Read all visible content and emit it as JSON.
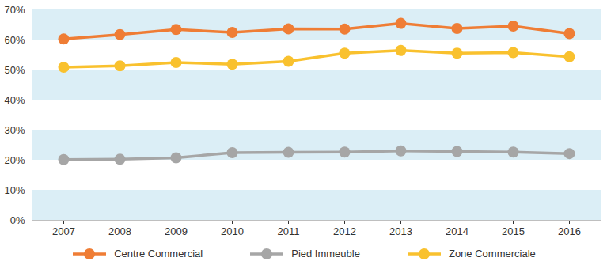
{
  "chart_data": {
    "type": "line",
    "categories": [
      "2007",
      "2008",
      "2009",
      "2010",
      "2011",
      "2012",
      "2013",
      "2014",
      "2015",
      "2016"
    ],
    "series": [
      {
        "name": "Centre Commercial",
        "color": "#ef7d35",
        "values": [
          60.3,
          61.8,
          63.5,
          62.5,
          63.7,
          63.6,
          65.5,
          63.8,
          64.6,
          62.1
        ]
      },
      {
        "name": "Pied Immeuble",
        "color": "#a6a6a6",
        "values": [
          20.2,
          20.3,
          20.8,
          22.5,
          22.6,
          22.7,
          23.1,
          22.9,
          22.7,
          22.2
        ]
      },
      {
        "name": "Zone Commerciale",
        "color": "#f9c12e",
        "values": [
          50.9,
          51.4,
          52.5,
          51.9,
          52.9,
          55.6,
          56.5,
          55.6,
          55.8,
          54.4
        ]
      }
    ],
    "ylim": [
      0,
      70
    ],
    "yticks": [
      {
        "value": 0,
        "label": "0%"
      },
      {
        "value": 10,
        "label": "10%"
      },
      {
        "value": 20,
        "label": "20%"
      },
      {
        "value": 30,
        "label": "30%"
      },
      {
        "value": 40,
        "label": "40%"
      },
      {
        "value": 50,
        "label": "50%"
      },
      {
        "value": 60,
        "label": "60%"
      },
      {
        "value": 70,
        "label": "70%"
      }
    ],
    "grid": true,
    "legend": "bottom",
    "marker": "circle"
  }
}
